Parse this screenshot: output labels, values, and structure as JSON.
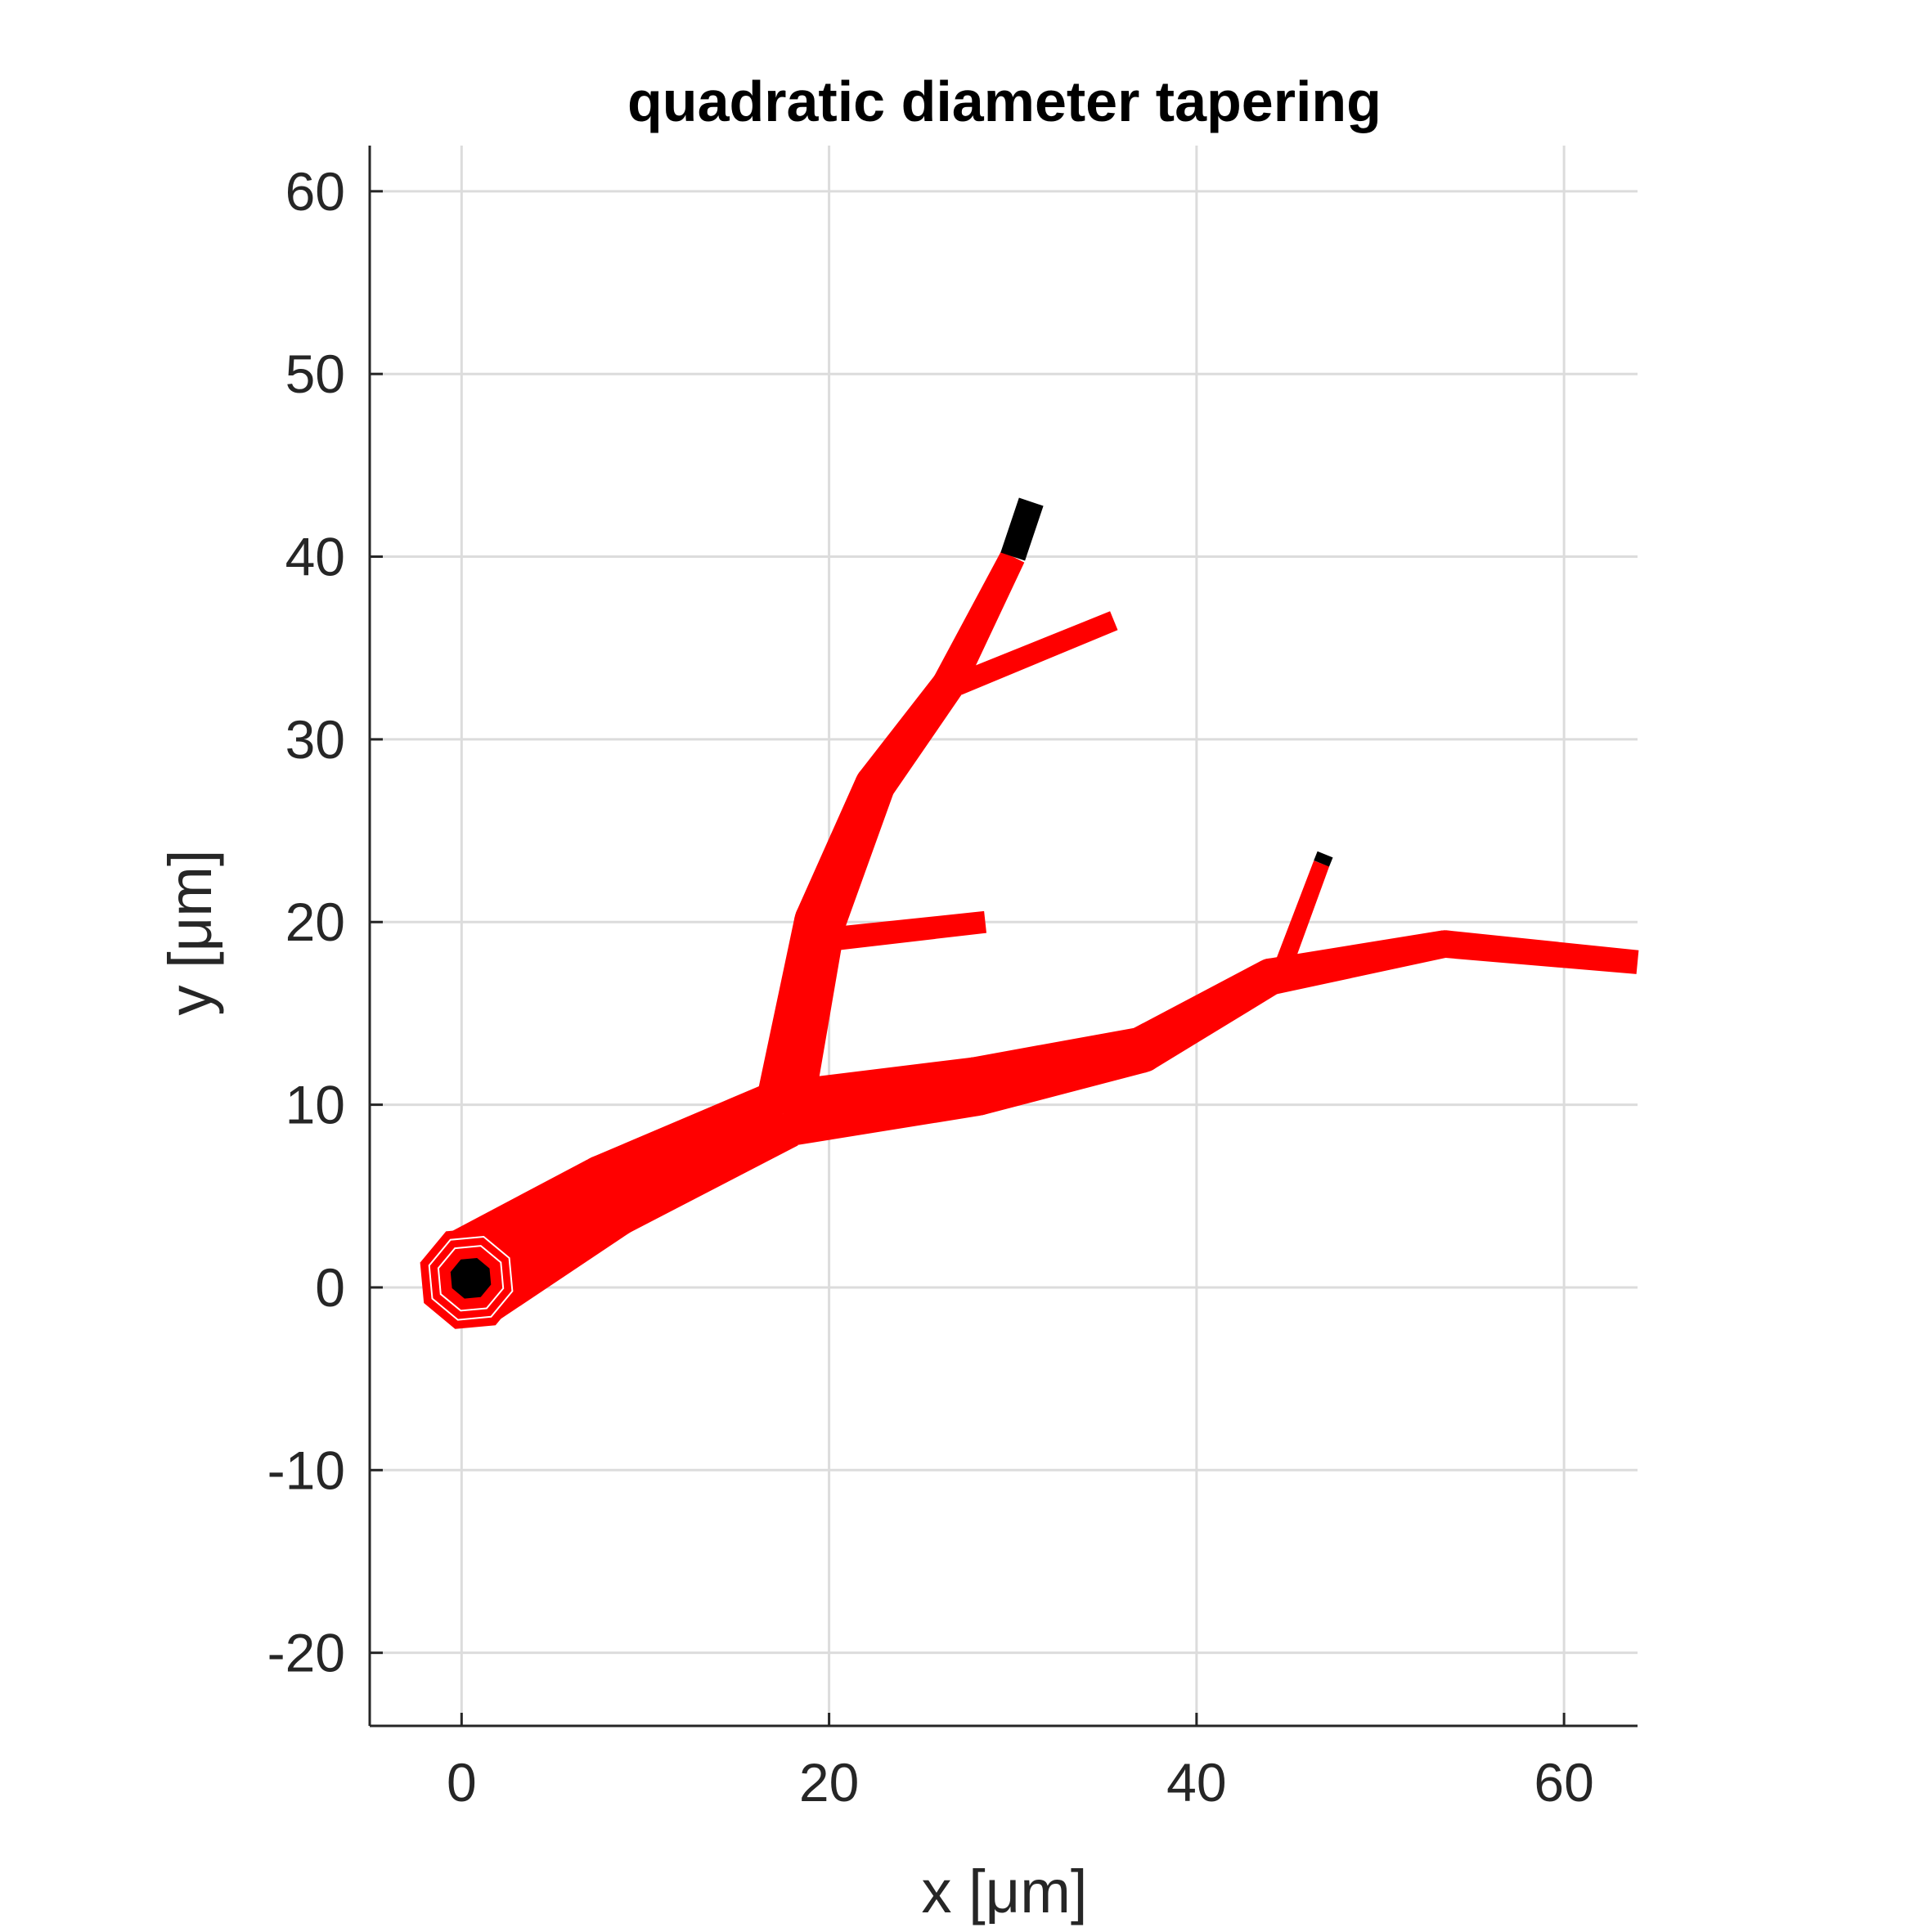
{
  "chart_data": {
    "type": "line",
    "title": "quadratic diameter tapering",
    "xlabel": "x [μm]",
    "ylabel": "y [μm]",
    "xlim": [
      -5,
      64
    ],
    "ylim": [
      -24,
      62.5
    ],
    "xticks": [
      0,
      20,
      40,
      60
    ],
    "yticks": [
      -20,
      -10,
      0,
      10,
      20,
      30,
      40,
      50,
      60
    ],
    "xtick_labels": [
      "0",
      "20",
      "40",
      "60"
    ],
    "ytick_labels": [
      "-20",
      "-10",
      "0",
      "10",
      "20",
      "30",
      "40",
      "50",
      "60"
    ],
    "grid": true,
    "colors": {
      "tree": "#ff0000",
      "tips": "#000000",
      "grid": "#dcdcdc",
      "axis": "#262626"
    },
    "series": [
      {
        "points": [
          [
            0.5,
            0.5
          ],
          [
            8,
            5
          ],
          [
            17.5,
            9.5
          ]
        ],
        "diameters": [
          5.5,
          4.6,
          3.8
        ]
      },
      {
        "points": [
          [
            17.5,
            9.5
          ],
          [
            19.5,
            20
          ],
          [
            22.5,
            27.5
          ],
          [
            26.5,
            33
          ],
          [
            30,
            40
          ]
        ],
        "diameters": [
          3.2,
          2.8,
          2.2,
          1.8,
          1.4
        ]
      },
      {
        "points": [
          [
            30,
            40
          ],
          [
            31,
            43
          ]
        ],
        "diameters": [
          1.4,
          1.4
        ],
        "tip": true
      },
      {
        "points": [
          [
            19.5,
            19
          ],
          [
            28.5,
            20
          ]
        ],
        "diameters": [
          1.3,
          1.2
        ]
      },
      {
        "points": [
          [
            27,
            33
          ],
          [
            35.5,
            36.5
          ]
        ],
        "diameters": [
          1.2,
          1.1
        ]
      },
      {
        "points": [
          [
            17.5,
            9.5
          ],
          [
            28,
            11
          ],
          [
            37,
            13
          ],
          [
            44,
            17
          ],
          [
            53.5,
            18.8
          ],
          [
            64,
            17.8
          ]
        ],
        "diameters": [
          3.6,
          3.2,
          2.5,
          2.0,
          1.5,
          1.3
        ]
      },
      {
        "points": [
          [
            44.5,
            17
          ],
          [
            46.8,
            23.2
          ]
        ],
        "diameters": [
          1.0,
          0.9
        ]
      },
      {
        "points": [
          [
            46.8,
            23.2
          ],
          [
            47,
            23.7
          ]
        ],
        "diameters": [
          0.9,
          0.9
        ],
        "tip": true
      }
    ]
  }
}
